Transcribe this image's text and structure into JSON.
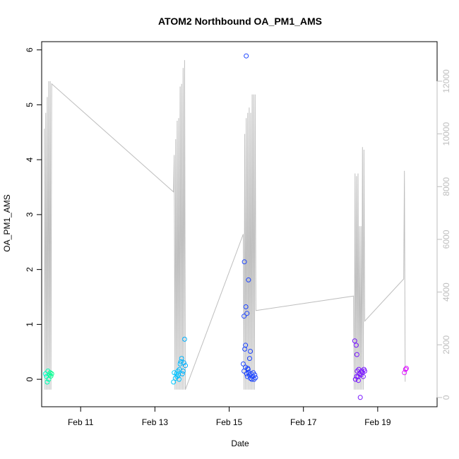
{
  "chart_data": {
    "type": "scatter",
    "title": "ATOM2 Northbound OA_PM1_AMS",
    "xlabel": "Date",
    "ylabel": "OA_PM1_AMS",
    "x_unit": "day-of-February",
    "xlim": [
      9.95,
      20.6
    ],
    "ylim": [
      -0.5,
      6.15
    ],
    "y2lim": [
      -350,
      13500
    ],
    "x_ticks": [
      {
        "value": 11,
        "label": "Feb 11"
      },
      {
        "value": 13,
        "label": "Feb 13"
      },
      {
        "value": 15,
        "label": "Feb 15"
      },
      {
        "value": 17,
        "label": "Feb 17"
      },
      {
        "value": 19,
        "label": "Feb 19"
      }
    ],
    "y_ticks": [
      0,
      1,
      2,
      3,
      4,
      5,
      6
    ],
    "y2_ticks": [
      0,
      2000,
      4000,
      6000,
      8000,
      10000,
      12000
    ],
    "grid": false,
    "colors": {
      "axis": "#000000",
      "secondary_axis": "#bebebe",
      "secondary_line": "#bebebe"
    },
    "series": [
      {
        "mark": "points",
        "color_by": "date",
        "points": [
          {
            "x": 10.05,
            "y": 0.1,
            "color": "#00ffc8"
          },
          {
            "x": 10.08,
            "y": 0.05,
            "color": "#00ffc0"
          },
          {
            "x": 10.1,
            "y": -0.05,
            "color": "#00ffb8"
          },
          {
            "x": 10.12,
            "y": 0.15,
            "color": "#00ffb0"
          },
          {
            "x": 10.14,
            "y": 0.0,
            "color": "#00ffa8"
          },
          {
            "x": 10.16,
            "y": 0.08,
            "color": "#00ffa0"
          },
          {
            "x": 10.18,
            "y": 0.12,
            "color": "#00ff98"
          },
          {
            "x": 10.2,
            "y": 0.06,
            "color": "#00ff90"
          },
          {
            "x": 10.22,
            "y": 0.1,
            "color": "#00ff88"
          },
          {
            "x": 13.5,
            "y": -0.05,
            "color": "#00c8ff"
          },
          {
            "x": 13.52,
            "y": 0.12,
            "color": "#00c8ff"
          },
          {
            "x": 13.55,
            "y": 0.02,
            "color": "#00c4ff"
          },
          {
            "x": 13.58,
            "y": 0.1,
            "color": "#00c4ff"
          },
          {
            "x": 13.6,
            "y": 0.05,
            "color": "#00c0ff"
          },
          {
            "x": 13.63,
            "y": 0.08,
            "color": "#00c0ff"
          },
          {
            "x": 13.66,
            "y": 0.18,
            "color": "#00bcff"
          },
          {
            "x": 13.68,
            "y": 0.28,
            "color": "#00bcff"
          },
          {
            "x": 13.7,
            "y": 0.32,
            "color": "#00b8ff"
          },
          {
            "x": 13.72,
            "y": 0.38,
            "color": "#00b8ff"
          },
          {
            "x": 13.74,
            "y": 0.1,
            "color": "#00b4ff"
          },
          {
            "x": 13.76,
            "y": 0.15,
            "color": "#00b4ff"
          },
          {
            "x": 13.78,
            "y": 0.3,
            "color": "#00b0ff"
          },
          {
            "x": 13.8,
            "y": 0.73,
            "color": "#00b0ff"
          },
          {
            "x": 13.82,
            "y": 0.25,
            "color": "#00acff"
          },
          {
            "x": 13.65,
            "y": 0.0,
            "color": "#00c0ff"
          },
          {
            "x": 13.62,
            "y": 0.15,
            "color": "#00c0ff"
          },
          {
            "x": 15.38,
            "y": 0.28,
            "color": "#1e46ff"
          },
          {
            "x": 15.4,
            "y": 1.15,
            "color": "#1e46ff"
          },
          {
            "x": 15.41,
            "y": 2.14,
            "color": "#1e46ff"
          },
          {
            "x": 15.42,
            "y": 0.55,
            "color": "#1e46ff"
          },
          {
            "x": 15.44,
            "y": 0.62,
            "color": "#1e46ff"
          },
          {
            "x": 15.45,
            "y": 1.32,
            "color": "#1e46ff"
          },
          {
            "x": 15.46,
            "y": 5.89,
            "color": "#1e46ff"
          },
          {
            "x": 15.48,
            "y": 1.2,
            "color": "#1e46ff"
          },
          {
            "x": 15.5,
            "y": 0.2,
            "color": "#1e46ff"
          },
          {
            "x": 15.52,
            "y": 1.81,
            "color": "#1e46ff"
          },
          {
            "x": 15.55,
            "y": 0.38,
            "color": "#1e46ff"
          },
          {
            "x": 15.57,
            "y": 0.51,
            "color": "#1e46ff"
          },
          {
            "x": 15.4,
            "y": 0.15,
            "color": "#1e46ff"
          },
          {
            "x": 15.44,
            "y": 0.22,
            "color": "#1e46ff"
          },
          {
            "x": 15.47,
            "y": 0.1,
            "color": "#1e46ff"
          },
          {
            "x": 15.49,
            "y": 0.05,
            "color": "#1e46ff"
          },
          {
            "x": 15.51,
            "y": 0.18,
            "color": "#1e46ff"
          },
          {
            "x": 15.53,
            "y": 0.12,
            "color": "#1e46ff"
          },
          {
            "x": 15.55,
            "y": 0.08,
            "color": "#1e46ff"
          },
          {
            "x": 15.57,
            "y": 0.02,
            "color": "#1e46ff"
          },
          {
            "x": 15.59,
            "y": 0.1,
            "color": "#1e46ff"
          },
          {
            "x": 15.61,
            "y": 0.0,
            "color": "#1e46ff"
          },
          {
            "x": 15.63,
            "y": 0.05,
            "color": "#1e46ff"
          },
          {
            "x": 15.65,
            "y": 0.12,
            "color": "#1e46ff"
          },
          {
            "x": 15.67,
            "y": 0.0,
            "color": "#1e46ff"
          },
          {
            "x": 15.69,
            "y": 0.08,
            "color": "#1e46ff"
          },
          {
            "x": 15.71,
            "y": 0.03,
            "color": "#1e46ff"
          },
          {
            "x": 18.38,
            "y": 0.7,
            "color": "#7814ff"
          },
          {
            "x": 18.4,
            "y": 0.0,
            "color": "#7814ff"
          },
          {
            "x": 18.42,
            "y": 0.62,
            "color": "#7814ff"
          },
          {
            "x": 18.44,
            "y": 0.45,
            "color": "#7814ff"
          },
          {
            "x": 18.45,
            "y": 0.15,
            "color": "#7814ff"
          },
          {
            "x": 18.47,
            "y": 0.05,
            "color": "#7814ff"
          },
          {
            "x": 18.49,
            "y": 0.18,
            "color": "#7814ff"
          },
          {
            "x": 18.51,
            "y": 0.1,
            "color": "#7814ff"
          },
          {
            "x": 18.53,
            "y": -0.33,
            "color": "#7814ff"
          },
          {
            "x": 18.55,
            "y": 0.08,
            "color": "#7814ff"
          },
          {
            "x": 18.57,
            "y": 0.15,
            "color": "#7814ff"
          },
          {
            "x": 18.59,
            "y": 0.12,
            "color": "#7814ff"
          },
          {
            "x": 18.61,
            "y": 0.05,
            "color": "#7814ff"
          },
          {
            "x": 18.63,
            "y": 0.18,
            "color": "#7814ff"
          },
          {
            "x": 18.65,
            "y": 0.15,
            "color": "#7814ff"
          },
          {
            "x": 18.43,
            "y": 0.05,
            "color": "#7814ff"
          },
          {
            "x": 18.48,
            "y": -0.02,
            "color": "#7814ff"
          },
          {
            "x": 19.72,
            "y": 0.12,
            "color": "#dc14ff"
          },
          {
            "x": 19.75,
            "y": 0.18,
            "color": "#dc14ff"
          },
          {
            "x": 19.77,
            "y": 0.2,
            "color": "#dc14ff"
          }
        ]
      },
      {
        "mark": "line",
        "axis": "right",
        "color": "#bebebe",
        "x": [
          10.02,
          10.04,
          10.06,
          10.08,
          10.1,
          10.12,
          10.14,
          10.16,
          10.18,
          10.2,
          10.22,
          13.5,
          13.52,
          13.54,
          13.56,
          13.58,
          13.6,
          13.62,
          13.64,
          13.66,
          13.68,
          13.7,
          13.72,
          13.74,
          13.76,
          13.78,
          13.8,
          13.82,
          15.38,
          15.4,
          15.42,
          15.44,
          15.46,
          15.48,
          15.5,
          15.52,
          15.54,
          15.56,
          15.58,
          15.6,
          15.62,
          15.64,
          15.66,
          15.68,
          15.7,
          15.72,
          18.35,
          18.37,
          18.39,
          18.41,
          18.43,
          18.45,
          18.47,
          18.49,
          18.51,
          18.53,
          18.55,
          18.57,
          18.59,
          18.61,
          18.63,
          18.65,
          19.7,
          19.72,
          19.74
        ],
        "values": [
          10200,
          300,
          10800,
          300,
          11400,
          300,
          12000,
          300,
          12000,
          300,
          11900,
          7800,
          9200,
          300,
          9800,
          300,
          10500,
          300,
          10600,
          300,
          11800,
          300,
          11900,
          300,
          12500,
          300,
          12800,
          300,
          6200,
          300,
          10000,
          300,
          10600,
          300,
          10800,
          300,
          11000,
          300,
          10800,
          300,
          11500,
          300,
          11500,
          300,
          11500,
          3300,
          3850,
          300,
          8500,
          300,
          8400,
          300,
          8500,
          300,
          6500,
          300,
          6500,
          300,
          9500,
          300,
          9400,
          2900,
          4500,
          8600,
          600
        ]
      }
    ]
  }
}
